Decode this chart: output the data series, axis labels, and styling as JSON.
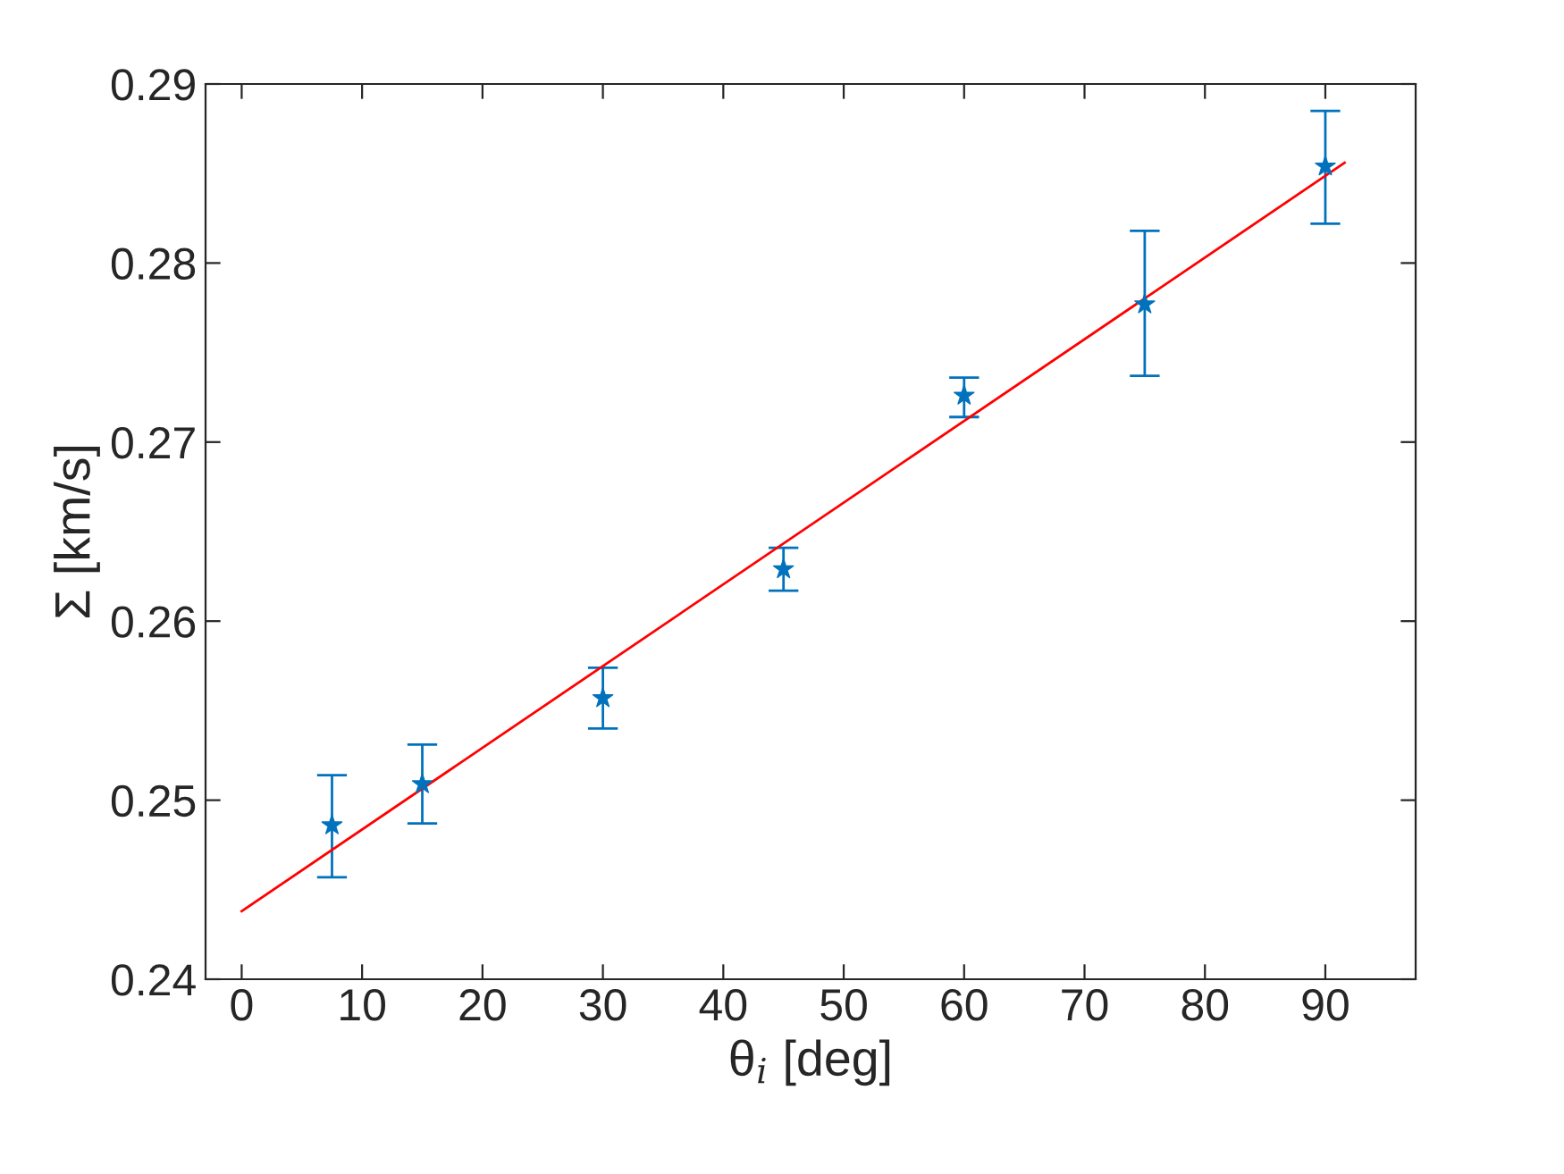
{
  "chart_data": {
    "type": "scatter",
    "xlabel": "θ$_{i}$ [deg]",
    "ylabel": "Σ [km/s]",
    "xlim": [
      -3,
      97.5
    ],
    "ylim": [
      0.24,
      0.29
    ],
    "xticks": [
      0,
      10,
      20,
      30,
      40,
      50,
      60,
      70,
      80,
      90
    ],
    "yticks": [
      0.24,
      0.25,
      0.26,
      0.27,
      0.28,
      0.29
    ],
    "grid": false,
    "series": [
      {
        "color": "#0072bd",
        "marker": "star",
        "x": [
          7.5,
          15,
          30,
          45,
          60,
          75,
          90
        ],
        "values": [
          0.2486,
          0.2509,
          0.2557,
          0.2629,
          0.2726,
          0.2777,
          0.2854
        ],
        "errors": [
          [
            0.2457,
            0.2514
          ],
          [
            0.2487,
            0.2531
          ],
          [
            0.254,
            0.2574
          ],
          [
            0.2617,
            0.2641
          ],
          [
            0.2714,
            0.2736
          ],
          [
            0.2737,
            0.2818
          ],
          [
            0.2822,
            0.2885
          ]
        ]
      },
      {
        "type": "line",
        "color": "#ff0000",
        "marker": "none",
        "line_style": "solid",
        "x": [
          0,
          91.6
        ],
        "values": [
          0.2438,
          0.2856
        ]
      }
    ]
  }
}
